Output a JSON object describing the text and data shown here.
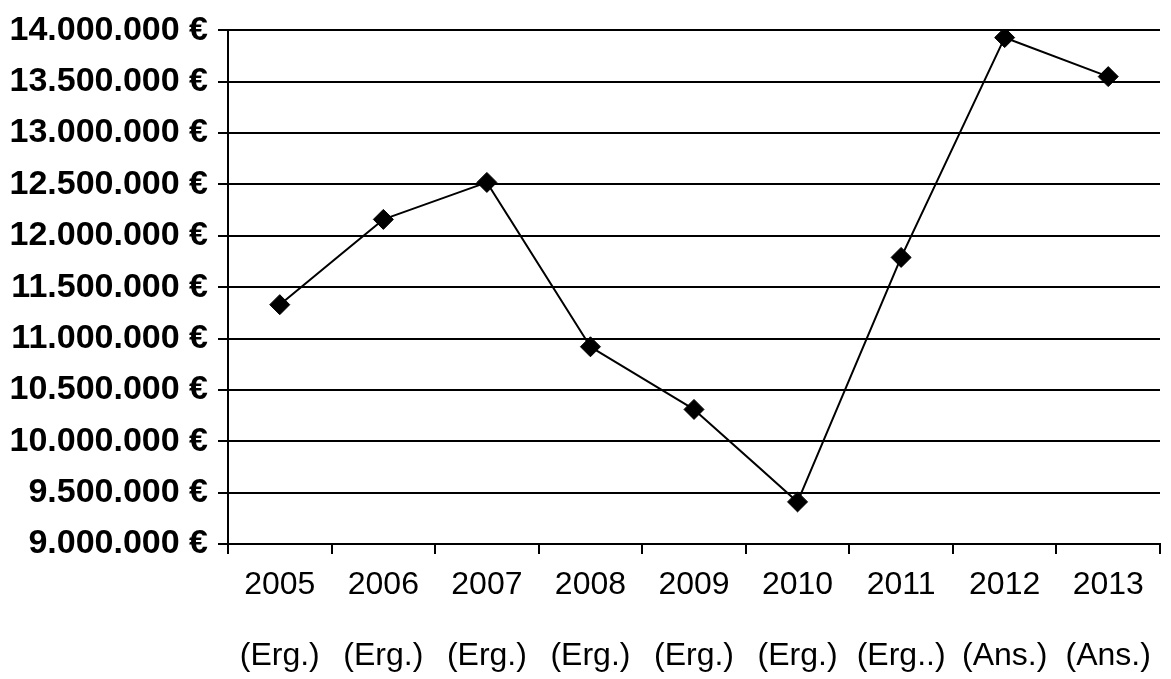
{
  "chart_data": {
    "type": "line",
    "categories": [
      "2005\n(Erg.)",
      "2006\n(Erg.)",
      "2007\n(Erg.)",
      "2008\n(Erg.)",
      "2009\n(Erg.)",
      "2010\n(Erg.)",
      "2011\n(Erg..)",
      "2012\n(Ans.)",
      "2013\n(Ans.)"
    ],
    "series": [
      {
        "color": "#000000",
        "values": [
          11330000,
          12160000,
          12520000,
          10920000,
          10310000,
          9410000,
          11790000,
          13930000,
          13550000
        ]
      }
    ],
    "ylim": [
      9000000,
      14000000
    ],
    "yticks": [
      {
        "value": 9000000,
        "label": "9.000.000 €"
      },
      {
        "value": 9500000,
        "label": "9.500.000 €"
      },
      {
        "value": 10000000,
        "label": "10.000.000 €"
      },
      {
        "value": 10500000,
        "label": "10.500.000 €"
      },
      {
        "value": 11000000,
        "label": "11.000.000 €"
      },
      {
        "value": 11500000,
        "label": "11.500.000 €"
      },
      {
        "value": 12000000,
        "label": "12.000.000 €"
      },
      {
        "value": 12500000,
        "label": "12.500.000 €"
      },
      {
        "value": 13000000,
        "label": "13.000.000 €"
      },
      {
        "value": 13500000,
        "label": "13.500.000 €"
      },
      {
        "value": 14000000,
        "label": "14.000.000 €"
      }
    ],
    "grid": "y",
    "marker": "diamond",
    "line_style": "solid"
  }
}
